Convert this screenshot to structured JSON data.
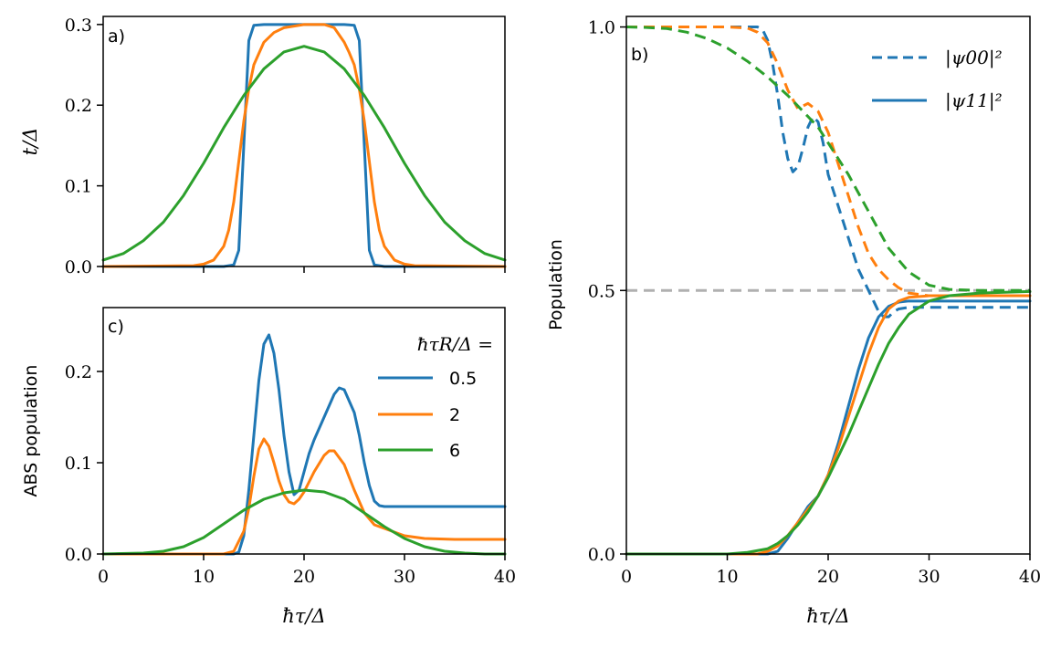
{
  "colors": {
    "blue": "#1f77b4",
    "orange": "#ff7f0e",
    "green": "#2ca02c",
    "grey": "#b0b0b0"
  },
  "chart_data": [
    {
      "id": "a",
      "type": "line",
      "panel_label": "a)",
      "xlabel": "",
      "ylabel": "t/Δ",
      "xlim": [
        0,
        40
      ],
      "ylim": [
        0,
        0.31
      ],
      "xticks": [
        0,
        10,
        20,
        30,
        40
      ],
      "xtick_labels_visible": false,
      "yticks": [
        0.0,
        0.1,
        0.2,
        0.3
      ],
      "ytick_labels": [
        "0.0",
        "0.1",
        "0.2",
        "0.3"
      ],
      "series": [
        {
          "name": "0.5",
          "color": "blue",
          "x": [
            0,
            12,
            13,
            13.5,
            14,
            14.5,
            15,
            16,
            18,
            20,
            22,
            24,
            25,
            25.5,
            26,
            26.5,
            27,
            28,
            40
          ],
          "y": [
            0,
            0,
            0.002,
            0.02,
            0.15,
            0.28,
            0.299,
            0.3,
            0.3,
            0.3,
            0.3,
            0.3,
            0.299,
            0.28,
            0.15,
            0.02,
            0.002,
            0,
            0
          ]
        },
        {
          "name": "2",
          "color": "orange",
          "x": [
            0,
            9,
            10,
            11,
            12,
            12.5,
            13,
            13.5,
            14,
            14.5,
            15,
            16,
            17,
            18,
            20,
            22,
            23,
            24,
            24.5,
            25,
            25.5,
            26,
            26.5,
            27,
            27.5,
            28,
            29,
            30,
            31,
            40
          ],
          "y": [
            0,
            0.001,
            0.003,
            0.008,
            0.025,
            0.045,
            0.08,
            0.13,
            0.18,
            0.22,
            0.25,
            0.278,
            0.29,
            0.296,
            0.3,
            0.3,
            0.296,
            0.278,
            0.265,
            0.25,
            0.22,
            0.18,
            0.13,
            0.08,
            0.045,
            0.025,
            0.008,
            0.003,
            0.001,
            0
          ]
        },
        {
          "name": "6",
          "color": "green",
          "x": [
            0,
            2,
            4,
            6,
            8,
            10,
            12,
            14,
            16,
            18,
            20,
            22,
            24,
            26,
            28,
            30,
            32,
            34,
            36,
            38,
            40
          ],
          "y": [
            0.008,
            0.016,
            0.032,
            0.055,
            0.088,
            0.128,
            0.172,
            0.212,
            0.245,
            0.266,
            0.273,
            0.266,
            0.245,
            0.212,
            0.172,
            0.128,
            0.088,
            0.055,
            0.032,
            0.016,
            0.008
          ]
        }
      ]
    },
    {
      "id": "c",
      "type": "line",
      "panel_label": "c)",
      "xlabel": "ħτ/Δ",
      "ylabel": "ABS population",
      "xlim": [
        0,
        40
      ],
      "ylim": [
        0,
        0.27
      ],
      "xticks": [
        0,
        10,
        20,
        30,
        40
      ],
      "xtick_labels": [
        "0",
        "10",
        "20",
        "30",
        "40"
      ],
      "yticks": [
        0.0,
        0.1,
        0.2
      ],
      "ytick_labels": [
        "0.0",
        "0.1",
        "0.2"
      ],
      "legend": {
        "title": "ħτR/Δ =",
        "entries": [
          "0.5",
          "2",
          "6"
        ],
        "colors": [
          "blue",
          "orange",
          "green"
        ]
      },
      "series": [
        {
          "name": "0.5",
          "color": "blue",
          "x": [
            0,
            13,
            13.5,
            14,
            14.5,
            15,
            15.5,
            16,
            16.5,
            17,
            17.5,
            18,
            18.5,
            19,
            19.5,
            20,
            20.5,
            21,
            22,
            23,
            23.5,
            24,
            25,
            25.5,
            26,
            26.5,
            27,
            27.5,
            28,
            40
          ],
          "y": [
            0,
            0,
            0.002,
            0.02,
            0.07,
            0.13,
            0.19,
            0.23,
            0.24,
            0.22,
            0.18,
            0.13,
            0.09,
            0.065,
            0.07,
            0.09,
            0.11,
            0.125,
            0.15,
            0.175,
            0.182,
            0.18,
            0.155,
            0.13,
            0.1,
            0.075,
            0.058,
            0.053,
            0.052,
            0.052
          ]
        },
        {
          "name": "2",
          "color": "orange",
          "x": [
            0,
            12,
            13,
            14,
            14.5,
            15,
            15.5,
            16,
            16.5,
            17,
            17.5,
            18,
            18.5,
            19,
            19.5,
            20,
            21,
            22,
            22.5,
            23,
            24,
            25,
            26,
            27,
            28,
            29,
            30,
            32,
            35,
            40
          ],
          "y": [
            0,
            0,
            0.003,
            0.025,
            0.05,
            0.085,
            0.115,
            0.126,
            0.118,
            0.1,
            0.08,
            0.065,
            0.057,
            0.055,
            0.06,
            0.068,
            0.09,
            0.108,
            0.113,
            0.113,
            0.098,
            0.07,
            0.045,
            0.032,
            0.028,
            0.024,
            0.02,
            0.017,
            0.016,
            0.016
          ]
        },
        {
          "name": "6",
          "color": "green",
          "x": [
            0,
            4,
            6,
            8,
            10,
            12,
            14,
            16,
            18,
            20,
            22,
            24,
            26,
            28,
            30,
            32,
            34,
            36,
            38,
            40
          ],
          "y": [
            0,
            0.001,
            0.003,
            0.008,
            0.018,
            0.033,
            0.048,
            0.06,
            0.067,
            0.07,
            0.068,
            0.06,
            0.045,
            0.03,
            0.017,
            0.008,
            0.003,
            0.001,
            0,
            0
          ]
        }
      ]
    },
    {
      "id": "b",
      "type": "line",
      "panel_label": "b)",
      "xlabel": "ħτ/Δ",
      "ylabel": "Population",
      "xlim": [
        0,
        40
      ],
      "ylim": [
        0,
        1.02
      ],
      "xticks": [
        0,
        10,
        20,
        30,
        40
      ],
      "xtick_labels": [
        "0",
        "10",
        "20",
        "30",
        "40"
      ],
      "yticks": [
        0.0,
        0.5,
        1.0
      ],
      "ytick_labels": [
        "0.0",
        "0.5",
        "1.0"
      ],
      "hline": {
        "y": 0.5,
        "color": "grey",
        "dash": true
      },
      "legend": {
        "entries": [
          "|ψ00|²",
          "|ψ11|²"
        ],
        "styles": [
          "dashed",
          "solid"
        ],
        "color": "blue"
      },
      "series": [
        {
          "name": "psi00 0.5",
          "style": "dashed",
          "color": "blue",
          "x": [
            0,
            12,
            13,
            13.5,
            14,
            14.5,
            15,
            15.5,
            16,
            16.5,
            17,
            17.5,
            18,
            18.5,
            19,
            19.5,
            20,
            21,
            22,
            23,
            24,
            24.5,
            25,
            25.5,
            26,
            26.5,
            27,
            28,
            30,
            40
          ],
          "y": [
            1,
            1,
            1,
            0.995,
            0.975,
            0.93,
            0.87,
            0.8,
            0.75,
            0.725,
            0.735,
            0.77,
            0.81,
            0.83,
            0.82,
            0.78,
            0.72,
            0.66,
            0.6,
            0.54,
            0.5,
            0.48,
            0.46,
            0.45,
            0.45,
            0.46,
            0.465,
            0.468,
            0.468,
            0.468
          ]
        },
        {
          "name": "psi00 2",
          "style": "dashed",
          "color": "orange",
          "x": [
            0,
            10,
            12,
            13,
            14,
            15,
            16,
            17,
            18,
            19,
            20,
            21,
            22,
            23,
            24,
            25,
            26,
            27,
            28,
            30,
            32,
            35,
            40
          ],
          "y": [
            1,
            1,
            0.998,
            0.99,
            0.97,
            0.93,
            0.88,
            0.845,
            0.855,
            0.84,
            0.8,
            0.74,
            0.68,
            0.62,
            0.57,
            0.54,
            0.52,
            0.505,
            0.495,
            0.49,
            0.49,
            0.49,
            0.49
          ]
        },
        {
          "name": "psi00 6",
          "style": "dashed",
          "color": "green",
          "x": [
            0,
            2,
            4,
            6,
            8,
            10,
            12,
            14,
            16,
            18,
            19,
            20,
            22,
            24,
            26,
            28,
            30,
            32,
            35,
            40
          ],
          "y": [
            1,
            0.999,
            0.997,
            0.99,
            0.978,
            0.96,
            0.935,
            0.905,
            0.87,
            0.83,
            0.81,
            0.78,
            0.72,
            0.65,
            0.58,
            0.535,
            0.51,
            0.502,
            0.5,
            0.5
          ]
        },
        {
          "name": "psi11 0.5",
          "style": "solid",
          "color": "blue",
          "x": [
            0,
            14,
            15,
            16,
            17,
            18,
            19,
            20,
            21,
            22,
            23,
            24,
            25,
            26,
            27,
            28,
            30,
            40
          ],
          "y": [
            0,
            0,
            0.005,
            0.03,
            0.06,
            0.09,
            0.11,
            0.15,
            0.21,
            0.28,
            0.35,
            0.41,
            0.45,
            0.47,
            0.478,
            0.48,
            0.48,
            0.48
          ]
        },
        {
          "name": "psi11 2",
          "style": "solid",
          "color": "orange",
          "x": [
            0,
            13,
            14,
            15,
            16,
            17,
            18,
            19,
            20,
            21,
            22,
            23,
            24,
            25,
            26,
            27,
            28,
            30,
            35,
            40
          ],
          "y": [
            0,
            0,
            0.005,
            0.015,
            0.035,
            0.06,
            0.085,
            0.11,
            0.15,
            0.2,
            0.26,
            0.32,
            0.38,
            0.43,
            0.465,
            0.48,
            0.487,
            0.49,
            0.49,
            0.49
          ]
        },
        {
          "name": "psi11 6",
          "style": "solid",
          "color": "green",
          "x": [
            0,
            10,
            12,
            14,
            15,
            16,
            17,
            18,
            19,
            20,
            21,
            22,
            23,
            24,
            25,
            26,
            27,
            28,
            30,
            32,
            35,
            40
          ],
          "y": [
            0,
            0,
            0.003,
            0.01,
            0.02,
            0.035,
            0.055,
            0.08,
            0.11,
            0.145,
            0.185,
            0.225,
            0.27,
            0.315,
            0.36,
            0.4,
            0.43,
            0.455,
            0.48,
            0.49,
            0.495,
            0.498
          ]
        }
      ]
    }
  ]
}
